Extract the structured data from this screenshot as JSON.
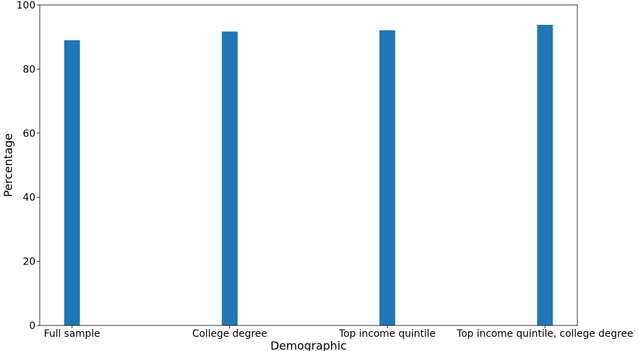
{
  "chart_data": {
    "type": "bar",
    "title": "",
    "xlabel": "Demographic",
    "ylabel": "Percentage",
    "categories": [
      "Full sample",
      "College degree",
      "Top income quintile",
      "Top income quintile, college degree"
    ],
    "values": [
      89.0,
      91.7,
      92.1,
      93.8
    ],
    "ylim": [
      0,
      100
    ],
    "yticks": [
      0,
      20,
      40,
      60,
      80,
      100
    ],
    "grid": false,
    "bar_color": "#1f77b4"
  }
}
